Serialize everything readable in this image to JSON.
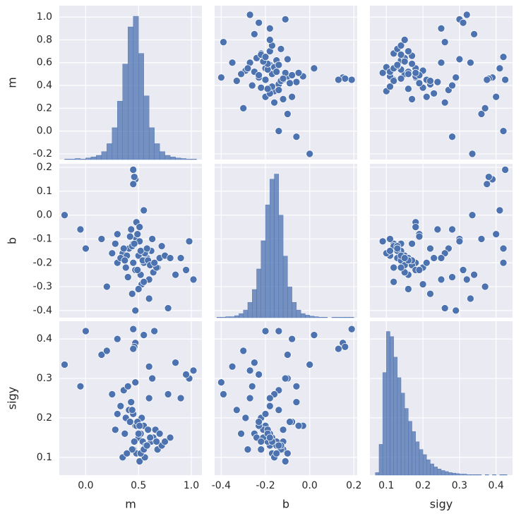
{
  "chart_data": {
    "type": "pairplot",
    "color": "#4c72b0",
    "grid": true,
    "variables": [
      {
        "name": "m",
        "lim": [
          -0.25,
          1.1
        ],
        "xticks": [
          {
            "value": 0,
            "label": "0.0"
          },
          0.5,
          {
            "value": 1,
            "label": "1.0"
          }
        ],
        "yticks": [
          -0.2,
          {
            "value": 0,
            "label": "0.0"
          },
          0.2,
          0.4,
          0.6,
          0.8,
          {
            "value": 1,
            "label": "1.0"
          }
        ],
        "values": [
          0.5,
          0.45,
          0.55,
          0.62,
          0.38,
          0.48,
          0.52,
          0.58,
          0.41,
          0.66,
          0.35,
          0.49,
          0.54,
          0.6,
          0.44,
          0.7,
          0.3,
          0.51,
          0.47,
          0.57,
          0.43,
          0.64,
          0.39,
          0.53,
          0.46,
          0.59,
          0.36,
          0.68,
          0.42,
          0.56,
          0.5,
          0.33,
          0.72,
          0.48,
          0.61,
          0.4,
          0.52,
          0.45,
          0.75,
          0.28,
          0.55,
          0.63,
          0.37,
          0.49,
          0.58,
          0.44,
          0.8,
          0.25,
          0.51,
          0.67,
          -0.2,
          0.0,
          -0.05,
          1.02,
          0.98,
          0.47,
          0.45,
          0.47,
          0.46,
          0.45,
          0.3,
          0.78,
          0.65,
          0.85,
          0.9,
          0.15,
          0.2,
          0.95,
          0.6,
          0.55
        ],
        "hist": {
          "bins": [
            -0.2,
            -0.15,
            -0.1,
            -0.05,
            0,
            0.05,
            0.1,
            0.15,
            0.2,
            0.25,
            0.3,
            0.35,
            0.4,
            0.45,
            0.5,
            0.55,
            0.6,
            0.65,
            0.7,
            0.75,
            0.8,
            0.85,
            0.9,
            0.95,
            1,
            1.05
          ],
          "counts": [
            1,
            1,
            2,
            1,
            3,
            5,
            8,
            15,
            30,
            60,
            110,
            180,
            250,
            270,
            200,
            120,
            60,
            30,
            15,
            8,
            5,
            3,
            2,
            1,
            1
          ],
          "ylim": [
            0,
            290
          ]
        }
      },
      {
        "name": "b",
        "lim": [
          -0.43,
          0.215
        ],
        "xticks": [
          -0.4,
          -0.2,
          {
            "value": 0,
            "label": "0.0"
          },
          0.2
        ],
        "yticks": [
          -0.4,
          -0.3,
          -0.2,
          -0.1,
          {
            "value": 0,
            "label": "0.0"
          },
          0.1,
          0.2
        ],
        "values": [
          -0.17,
          -0.12,
          -0.2,
          -0.15,
          -0.22,
          -0.1,
          -0.25,
          -0.18,
          -0.14,
          -0.21,
          -0.16,
          -0.08,
          -0.19,
          -0.27,
          -0.13,
          -0.18,
          -0.2,
          -0.11,
          -0.23,
          -0.15,
          -0.06,
          -0.24,
          -0.17,
          -0.29,
          -0.12,
          -0.19,
          -0.14,
          -0.22,
          -0.09,
          -0.16,
          -0.31,
          -0.18,
          -0.13,
          -0.03,
          -0.21,
          -0.26,
          -0.15,
          -0.2,
          -0.17,
          -0.12,
          -0.28,
          -0.1,
          -0.19,
          -0.23,
          -0.14,
          -0.33,
          -0.18,
          -0.16,
          -0.05,
          -0.22,
          0.0,
          -0.14,
          -0.06,
          -0.27,
          -0.11,
          -0.4,
          0.19,
          0.15,
          0.16,
          0.13,
          -0.08,
          -0.39,
          -0.2,
          -0.25,
          -0.18,
          -0.1,
          -0.3,
          -0.23,
          -0.35,
          0.02
        ],
        "hist": {
          "bins": [
            -0.42,
            -0.4,
            -0.38,
            -0.36,
            -0.34,
            -0.32,
            -0.3,
            -0.28,
            -0.26,
            -0.24,
            -0.22,
            -0.2,
            -0.18,
            -0.16,
            -0.14,
            -0.12,
            -0.1,
            -0.08,
            -0.06,
            -0.04,
            -0.02,
            0,
            0.02,
            0.04,
            0.06,
            0.08,
            0.1,
            0.12,
            0.14,
            0.16,
            0.18,
            0.2
          ],
          "counts": [
            1,
            1,
            2,
            2,
            4,
            8,
            15,
            30,
            55,
            95,
            150,
            220,
            270,
            280,
            200,
            120,
            60,
            30,
            15,
            8,
            5,
            3,
            2,
            1,
            1,
            0,
            1,
            1,
            1,
            1,
            1
          ],
          "ylim": [
            0,
            300
          ]
        }
      },
      {
        "name": "sigy",
        "lim": [
          0.055,
          0.445
        ],
        "xticks": [
          0.1,
          0.2,
          0.3,
          0.4
        ],
        "yticks": [
          0.1,
          0.2,
          0.3,
          0.4
        ],
        "values": [
          0.15,
          0.12,
          0.18,
          0.14,
          0.2,
          0.11,
          0.16,
          0.13,
          0.22,
          0.17,
          0.1,
          0.19,
          0.14,
          0.25,
          0.12,
          0.16,
          0.21,
          0.09,
          0.18,
          0.13,
          0.24,
          0.15,
          0.11,
          0.2,
          0.14,
          0.17,
          0.27,
          0.12,
          0.19,
          0.1,
          0.16,
          0.23,
          0.13,
          0.18,
          0.15,
          0.28,
          0.11,
          0.21,
          0.14,
          0.17,
          0.12,
          0.3,
          0.16,
          0.19,
          0.13,
          0.22,
          0.15,
          0.26,
          0.18,
          0.14,
          0.335,
          0.42,
          0.28,
          0.32,
          0.3,
          0.29,
          0.425,
          0.39,
          0.38,
          0.375,
          0.4,
          0.26,
          0.42,
          0.34,
          0.25,
          0.36,
          0.37,
          0.31,
          0.33,
          0.41
        ],
        "hist": {
          "bins": [
            0.07,
            0.08,
            0.09,
            0.1,
            0.11,
            0.12,
            0.13,
            0.14,
            0.15,
            0.16,
            0.17,
            0.18,
            0.19,
            0.2,
            0.21,
            0.22,
            0.23,
            0.24,
            0.25,
            0.26,
            0.27,
            0.28,
            0.29,
            0.3,
            0.31,
            0.32,
            0.33,
            0.34,
            0.35,
            0.36,
            0.37,
            0.38,
            0.39,
            0.4,
            0.41,
            0.42,
            0.43
          ],
          "counts": [
            5,
            60,
            200,
            280,
            270,
            230,
            190,
            160,
            130,
            105,
            85,
            65,
            50,
            40,
            30,
            22,
            16,
            12,
            9,
            7,
            5,
            4,
            3,
            2,
            2,
            1,
            1,
            1,
            1,
            0,
            1,
            0,
            1,
            0,
            1,
            1
          ],
          "ylim": [
            0,
            300
          ]
        }
      }
    ]
  }
}
